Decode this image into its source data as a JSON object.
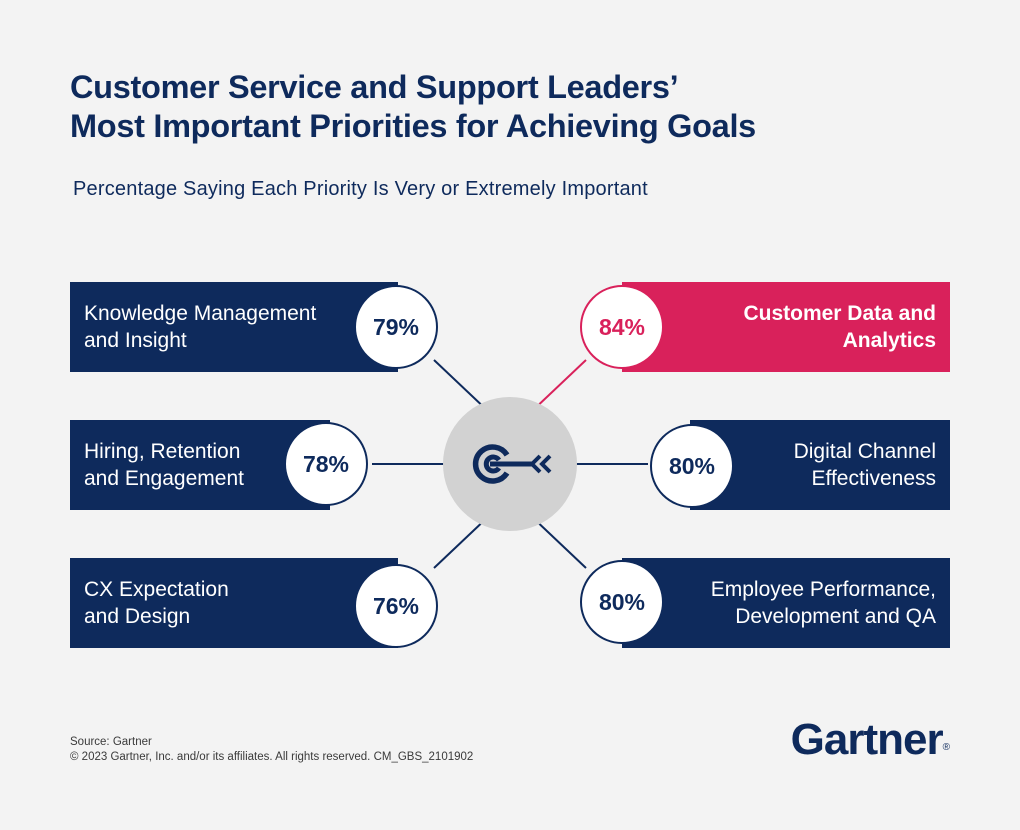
{
  "header": {
    "title_line1": "Customer Service and Support Leaders’",
    "title_line2": "Most Important Priorities for Achieving Goals",
    "subtitle": "Percentage Saying Each Priority Is Very or Extremely Important"
  },
  "colors": {
    "navy": "#0e2a5c",
    "magenta": "#d9215b",
    "hub_gray": "#d2d2d2"
  },
  "hub_icon": "target-arrow-icon",
  "chart_data": {
    "type": "table",
    "title": "Customer Service and Support Leaders’ Most Important Priorities for Achieving Goals",
    "subtitle": "Percentage Saying Each Priority Is Very or Extremely Important",
    "unit": "%",
    "categories": [
      "Knowledge Management and Insight",
      "Hiring, Retention and Engagement",
      "CX Expectation and Design",
      "Customer Data and Analytics",
      "Digital Channel Effectiveness",
      "Employee Performance, Development and QA"
    ],
    "values": [
      79,
      78,
      76,
      84,
      80,
      80
    ],
    "highlighted": "Customer Data and Analytics"
  },
  "items": [
    {
      "line1": "Knowledge Management",
      "line2": "and Insight",
      "pct": "79%"
    },
    {
      "line1": "Hiring, Retention",
      "line2": "and Engagement",
      "pct": "78%"
    },
    {
      "line1": "CX Expectation",
      "line2": "and Design",
      "pct": "76%"
    },
    {
      "line1": "Customer Data and",
      "line2": "Analytics",
      "pct": "84%"
    },
    {
      "line1": "Digital Channel",
      "line2": "Effectiveness",
      "pct": "80%"
    },
    {
      "line1": "Employee Performance,",
      "line2": "Development and QA",
      "pct": "80%"
    }
  ],
  "footer": {
    "source": "Source: Gartner",
    "copyright": "© 2023 Gartner, Inc. and/or its affiliates. All rights reserved. CM_GBS_2101902"
  },
  "logo": {
    "text": "Gartner",
    "mark": "®"
  }
}
